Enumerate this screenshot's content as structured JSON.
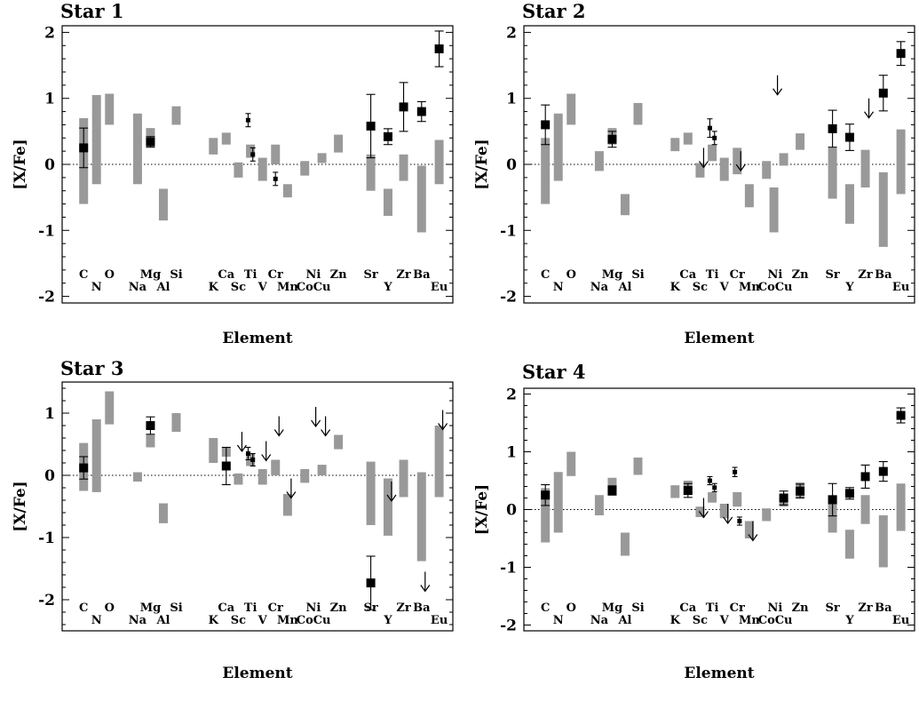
{
  "chart_data": [
    {
      "type": "scatter",
      "title": "Star 1",
      "xlabel": "Element",
      "ylabel": "[X/Fe]",
      "ylim": [
        -2.1,
        2.1
      ],
      "yticks": [
        -2,
        -1,
        0,
        1,
        2
      ],
      "grid": false,
      "reference_line": 0,
      "element_labels": {
        "top": [
          "C",
          "O",
          "Mg",
          "Si",
          "Ca",
          "Ti",
          "Cr",
          "Ni",
          "Zn",
          "Sr",
          "Zr",
          "Ba"
        ],
        "bottom": [
          "N",
          "Na",
          "Al",
          "K",
          "Sc",
          "V",
          "Mn",
          "Co",
          "Cu",
          "Y",
          "Eu"
        ]
      },
      "comparison_ranges": [
        {
          "element": "C",
          "low": -0.6,
          "high": 0.7
        },
        {
          "element": "N",
          "low": -0.3,
          "high": 1.05
        },
        {
          "element": "O",
          "low": 0.6,
          "high": 1.07
        },
        {
          "element": "Na",
          "low": -0.3,
          "high": 0.77
        },
        {
          "element": "Mg",
          "low": 0.3,
          "high": 0.55
        },
        {
          "element": "Al",
          "low": -0.85,
          "high": -0.37
        },
        {
          "element": "Si",
          "low": 0.6,
          "high": 0.88
        },
        {
          "element": "K",
          "low": 0.15,
          "high": 0.4
        },
        {
          "element": "Ca",
          "low": 0.3,
          "high": 0.48
        },
        {
          "element": "Sc",
          "low": -0.2,
          "high": 0.03
        },
        {
          "element": "Ti",
          "low": 0.1,
          "high": 0.3
        },
        {
          "element": "V",
          "low": -0.25,
          "high": 0.1
        },
        {
          "element": "Cr",
          "low": 0.0,
          "high": 0.3
        },
        {
          "element": "Mn",
          "low": -0.5,
          "high": -0.3
        },
        {
          "element": "Co",
          "low": -0.17,
          "high": 0.05
        },
        {
          "element": "Cu",
          "low": 0.02,
          "high": 0.17
        },
        {
          "element": "Zn",
          "low": 0.18,
          "high": 0.45
        },
        {
          "element": "Sr",
          "low": -0.4,
          "high": 0.15
        },
        {
          "element": "Y",
          "low": -0.78,
          "high": -0.37
        },
        {
          "element": "Zr",
          "low": -0.25,
          "high": 0.15
        },
        {
          "element": "Ba",
          "low": -1.03,
          "high": -0.02
        },
        {
          "element": "Eu",
          "low": -0.3,
          "high": 0.37
        }
      ],
      "measurements": [
        {
          "element": "C",
          "value": 0.25,
          "err": 0.3,
          "marker": "large"
        },
        {
          "element": "Mg",
          "value": 0.34,
          "err": 0.08,
          "marker": "large"
        },
        {
          "element": "Ti",
          "value": 0.67,
          "err": 0.1,
          "marker": "small"
        },
        {
          "element": "Ti",
          "value": 0.15,
          "err": 0.1,
          "marker": "small"
        },
        {
          "element": "Cr",
          "value": -0.22,
          "err": 0.1,
          "marker": "small"
        },
        {
          "element": "Sr",
          "value": 0.58,
          "err": 0.48,
          "marker": "large"
        },
        {
          "element": "Y",
          "value": 0.42,
          "err": 0.12,
          "marker": "large"
        },
        {
          "element": "Zr",
          "value": 0.87,
          "err": 0.37,
          "marker": "large"
        },
        {
          "element": "Ba",
          "value": 0.8,
          "err": 0.15,
          "marker": "large"
        },
        {
          "element": "Eu",
          "value": 1.75,
          "err": 0.27,
          "marker": "large"
        }
      ],
      "upper_limits": []
    },
    {
      "type": "scatter",
      "title": "Star 2",
      "xlabel": "Element",
      "ylabel": "[X/Fe]",
      "ylim": [
        -2.1,
        2.1
      ],
      "yticks": [
        -2,
        -1,
        0,
        1,
        2
      ],
      "grid": false,
      "reference_line": 0,
      "element_labels": {
        "top": [
          "C",
          "O",
          "Mg",
          "Si",
          "Ca",
          "Ti",
          "Cr",
          "Ni",
          "Zn",
          "Sr",
          "Zr",
          "Ba"
        ],
        "bottom": [
          "N",
          "Na",
          "Al",
          "K",
          "Sc",
          "V",
          "Mn",
          "Co",
          "Cu",
          "Y",
          "Eu"
        ]
      },
      "comparison_ranges": [
        {
          "element": "C",
          "low": -0.6,
          "high": 0.4
        },
        {
          "element": "N",
          "low": -0.25,
          "high": 0.77
        },
        {
          "element": "O",
          "low": 0.6,
          "high": 1.07
        },
        {
          "element": "Na",
          "low": -0.1,
          "high": 0.2
        },
        {
          "element": "Mg",
          "low": 0.3,
          "high": 0.55
        },
        {
          "element": "Al",
          "low": -0.77,
          "high": -0.45
        },
        {
          "element": "Si",
          "low": 0.6,
          "high": 0.93
        },
        {
          "element": "K",
          "low": 0.2,
          "high": 0.4
        },
        {
          "element": "Ca",
          "low": 0.3,
          "high": 0.48
        },
        {
          "element": "Sc",
          "low": -0.2,
          "high": 0.02
        },
        {
          "element": "Ti",
          "low": 0.05,
          "high": 0.3
        },
        {
          "element": "V",
          "low": -0.25,
          "high": 0.1
        },
        {
          "element": "Cr",
          "low": -0.15,
          "high": 0.25
        },
        {
          "element": "Mn",
          "low": -0.65,
          "high": -0.3
        },
        {
          "element": "Co",
          "low": -0.22,
          "high": 0.05
        },
        {
          "element": "Cu",
          "low": -0.02,
          "high": 0.17
        },
        {
          "element": "Zn",
          "low": 0.22,
          "high": 0.47
        },
        {
          "element": "Ni",
          "low": -1.03,
          "high": -0.35
        },
        {
          "element": "Sr",
          "low": -0.52,
          "high": 0.25
        },
        {
          "element": "Y",
          "low": -0.9,
          "high": -0.3
        },
        {
          "element": "Zr",
          "low": -0.35,
          "high": 0.22
        },
        {
          "element": "Ba",
          "low": -1.25,
          "high": -0.12
        },
        {
          "element": "Eu",
          "low": -0.45,
          "high": 0.53
        }
      ],
      "measurements": [
        {
          "element": "C",
          "value": 0.6,
          "err": 0.3,
          "marker": "large"
        },
        {
          "element": "Mg",
          "value": 0.38,
          "err": 0.12,
          "marker": "large"
        },
        {
          "element": "Ti",
          "value": 0.55,
          "err": 0.14,
          "marker": "small"
        },
        {
          "element": "Ti",
          "value": 0.4,
          "err": 0.1,
          "marker": "small"
        },
        {
          "element": "Sr",
          "value": 0.54,
          "err": 0.28,
          "marker": "large"
        },
        {
          "element": "Y",
          "value": 0.41,
          "err": 0.2,
          "marker": "large"
        },
        {
          "element": "Ba",
          "value": 1.08,
          "err": 0.27,
          "marker": "large"
        },
        {
          "element": "Eu",
          "value": 1.68,
          "err": 0.18,
          "marker": "large"
        }
      ],
      "upper_limits": [
        {
          "element": "Sc",
          "value": 0.25
        },
        {
          "element": "Cr",
          "value": 0.2
        },
        {
          "element": "Ni",
          "value": 1.35
        },
        {
          "element": "Zr",
          "value": 1.0
        }
      ]
    },
    {
      "type": "scatter",
      "title": "Star 3",
      "xlabel": "Element",
      "ylabel": "[X/Fe]",
      "ylim": [
        -2.5,
        1.5
      ],
      "yticks": [
        -2,
        -1,
        0,
        1
      ],
      "grid": false,
      "reference_line": 0,
      "element_labels": {
        "top": [
          "C",
          "O",
          "Mg",
          "Si",
          "Ca",
          "Ti",
          "Cr",
          "Ni",
          "Zn",
          "Sr",
          "Zr",
          "Ba"
        ],
        "bottom": [
          "N",
          "Na",
          "Al",
          "K",
          "Sc",
          "V",
          "Mn",
          "Co",
          "Cu",
          "Y",
          "Eu"
        ]
      },
      "comparison_ranges": [
        {
          "element": "C",
          "low": -0.25,
          "high": 0.52
        },
        {
          "element": "N",
          "low": -0.27,
          "high": 0.9
        },
        {
          "element": "O",
          "low": 0.82,
          "high": 1.35
        },
        {
          "element": "Na",
          "low": -0.1,
          "high": 0.05
        },
        {
          "element": "Mg",
          "low": 0.45,
          "high": 0.65
        },
        {
          "element": "Al",
          "low": -0.77,
          "high": -0.45
        },
        {
          "element": "Si",
          "low": 0.7,
          "high": 1.0
        },
        {
          "element": "K",
          "low": 0.2,
          "high": 0.6
        },
        {
          "element": "Ca",
          "low": 0.3,
          "high": 0.45
        },
        {
          "element": "Sc",
          "low": -0.15,
          "high": 0.03
        },
        {
          "element": "Ti",
          "low": 0.15,
          "high": 0.35
        },
        {
          "element": "V",
          "low": -0.15,
          "high": 0.1
        },
        {
          "element": "Cr",
          "low": 0.0,
          "high": 0.25
        },
        {
          "element": "Mn",
          "low": -0.65,
          "high": -0.3
        },
        {
          "element": "Co",
          "low": -0.12,
          "high": 0.1
        },
        {
          "element": "Cu",
          "low": 0.0,
          "high": 0.17
        },
        {
          "element": "Zn",
          "low": 0.42,
          "high": 0.65
        },
        {
          "element": "Sr",
          "low": -0.8,
          "high": 0.22
        },
        {
          "element": "Y",
          "low": -0.97,
          "high": -0.05
        },
        {
          "element": "Zr",
          "low": -0.35,
          "high": 0.25
        },
        {
          "element": "Ba",
          "low": -1.38,
          "high": 0.05
        },
        {
          "element": "Eu",
          "low": -0.35,
          "high": 0.8
        }
      ],
      "measurements": [
        {
          "element": "C",
          "value": 0.12,
          "err": 0.18,
          "marker": "large"
        },
        {
          "element": "Mg",
          "value": 0.8,
          "err": 0.14,
          "marker": "large"
        },
        {
          "element": "Ca",
          "value": 0.15,
          "err": 0.3,
          "marker": "large"
        },
        {
          "element": "Ti",
          "value": 0.35,
          "err": 0.1,
          "marker": "small"
        },
        {
          "element": "Ti",
          "value": 0.25,
          "err": 0.1,
          "marker": "small"
        },
        {
          "element": "Sr",
          "value": -1.73,
          "err": 0.43,
          "marker": "large"
        }
      ],
      "upper_limits": [
        {
          "element": "Sc",
          "value": 0.7
        },
        {
          "element": "V",
          "value": 0.55
        },
        {
          "element": "Cr",
          "value": 0.95
        },
        {
          "element": "Mn",
          "value": -0.05
        },
        {
          "element": "Ni",
          "value": 1.1
        },
        {
          "element": "Cu",
          "value": 0.95
        },
        {
          "element": "Y",
          "value": -0.1
        },
        {
          "element": "Ba",
          "value": -1.55
        },
        {
          "element": "Eu",
          "value": 1.05
        }
      ]
    },
    {
      "type": "scatter",
      "title": "Star 4",
      "xlabel": "Element",
      "ylabel": "[X/Fe]",
      "ylim": [
        -2.1,
        2.1
      ],
      "yticks": [
        -2,
        -1,
        0,
        1,
        2
      ],
      "grid": false,
      "reference_line": 0,
      "element_labels": {
        "top": [
          "C",
          "O",
          "Mg",
          "Si",
          "Ca",
          "Ti",
          "Cr",
          "Ni",
          "Zn",
          "Sr",
          "Zr",
          "Ba"
        ],
        "bottom": [
          "N",
          "Na",
          "Al",
          "K",
          "Sc",
          "V",
          "Mn",
          "Co",
          "Cu",
          "Y",
          "Eu"
        ]
      },
      "comparison_ranges": [
        {
          "element": "C",
          "low": -0.57,
          "high": 0.37
        },
        {
          "element": "N",
          "low": -0.4,
          "high": 0.65
        },
        {
          "element": "O",
          "low": 0.58,
          "high": 1.0
        },
        {
          "element": "Na",
          "low": -0.1,
          "high": 0.25
        },
        {
          "element": "Mg",
          "low": 0.3,
          "high": 0.55
        },
        {
          "element": "Al",
          "low": -0.8,
          "high": -0.4
        },
        {
          "element": "Si",
          "low": 0.6,
          "high": 0.9
        },
        {
          "element": "K",
          "low": 0.2,
          "high": 0.42
        },
        {
          "element": "Ca",
          "low": 0.25,
          "high": 0.5
        },
        {
          "element": "Sc",
          "low": -0.13,
          "high": 0.05
        },
        {
          "element": "Ti",
          "low": 0.12,
          "high": 0.3
        },
        {
          "element": "V",
          "low": -0.15,
          "high": 0.1
        },
        {
          "element": "Cr",
          "low": 0.05,
          "high": 0.3
        },
        {
          "element": "Mn",
          "low": -0.5,
          "high": -0.2
        },
        {
          "element": "Co",
          "low": -0.2,
          "high": 0.02
        },
        {
          "element": "Cu",
          "low": 0.05,
          "high": 0.2
        },
        {
          "element": "Zn",
          "low": 0.2,
          "high": 0.47
        },
        {
          "element": "Sr",
          "low": -0.4,
          "high": 0.25
        },
        {
          "element": "Y",
          "low": -0.85,
          "high": -0.35
        },
        {
          "element": "Zr",
          "low": -0.25,
          "high": 0.25
        },
        {
          "element": "Ba",
          "low": -1.0,
          "high": -0.1
        },
        {
          "element": "Eu",
          "low": -0.37,
          "high": 0.45
        }
      ],
      "measurements": [
        {
          "element": "C",
          "value": 0.25,
          "err": 0.18,
          "marker": "large"
        },
        {
          "element": "Mg",
          "value": 0.33,
          "err": 0.08,
          "marker": "large"
        },
        {
          "element": "Ca",
          "value": 0.33,
          "err": 0.12,
          "marker": "large"
        },
        {
          "element": "Ti",
          "value": 0.5,
          "err": 0.07,
          "marker": "small"
        },
        {
          "element": "Ti",
          "value": 0.38,
          "err": 0.07,
          "marker": "small"
        },
        {
          "element": "Cr",
          "value": 0.65,
          "err": 0.08,
          "marker": "small"
        },
        {
          "element": "Cr",
          "value": -0.2,
          "err": 0.07,
          "marker": "small"
        },
        {
          "element": "Cu",
          "value": 0.2,
          "err": 0.12,
          "marker": "large"
        },
        {
          "element": "Zn",
          "value": 0.32,
          "err": 0.12,
          "marker": "large"
        },
        {
          "element": "Sr",
          "value": 0.17,
          "err": 0.28,
          "marker": "large"
        },
        {
          "element": "Y",
          "value": 0.28,
          "err": 0.1,
          "marker": "large"
        },
        {
          "element": "Zr",
          "value": 0.57,
          "err": 0.2,
          "marker": "large"
        },
        {
          "element": "Ba",
          "value": 0.66,
          "err": 0.17,
          "marker": "large"
        },
        {
          "element": "Eu",
          "value": 1.63,
          "err": 0.13,
          "marker": "large"
        }
      ],
      "upper_limits": [
        {
          "element": "Sc",
          "value": 0.2
        },
        {
          "element": "V",
          "value": 0.1
        },
        {
          "element": "Mn",
          "value": -0.2
        }
      ]
    }
  ]
}
